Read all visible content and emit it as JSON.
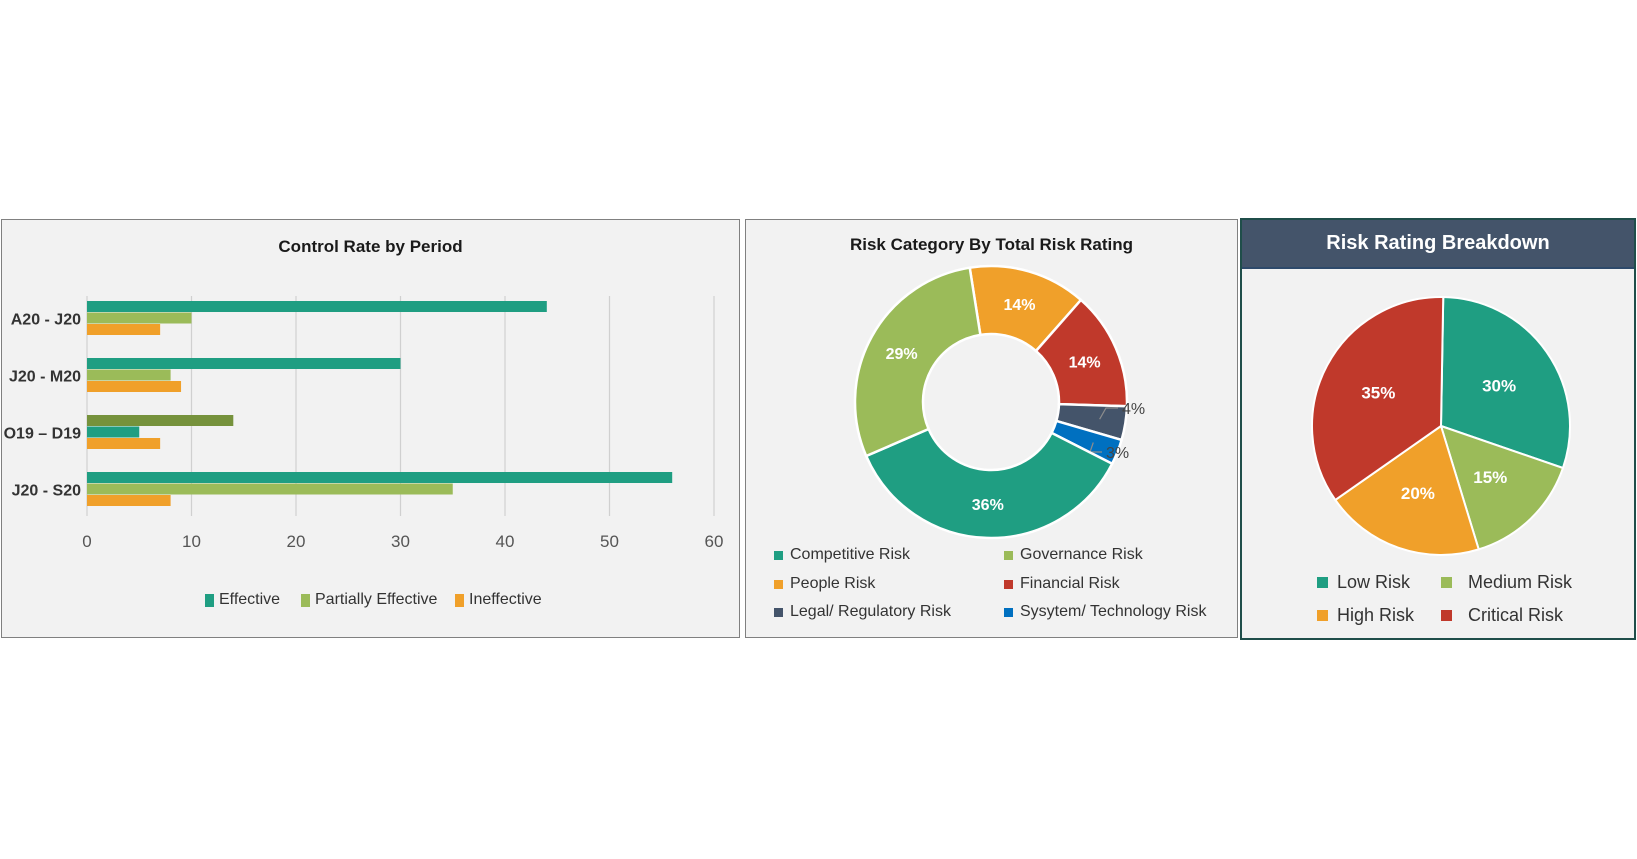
{
  "colors": {
    "effective": "#1f9e82",
    "partially_effective": "#9bbb59",
    "ineffective": "#f0a02a",
    "olive": "#76923c",
    "competitive": "#1f9e82",
    "governance": "#9bbb59",
    "people": "#f0a02a",
    "financial": "#c0392b",
    "legal": "#44546a",
    "system": "#0070c0",
    "low": "#1f9e82",
    "medium": "#9bbb59",
    "high": "#f0a02a",
    "critical": "#c0392b"
  },
  "chart_data": [
    {
      "type": "bar",
      "orientation": "horizontal",
      "title": "Control Rate by Period",
      "categories": [
        "A20 - J20",
        "J20 - M20",
        "O19 – D19",
        "J20 - S20"
      ],
      "series": [
        {
          "name": "Effective",
          "values": [
            44,
            30,
            5,
            56
          ]
        },
        {
          "name": "Partially Effective",
          "values": [
            10,
            8,
            14,
            35
          ]
        },
        {
          "name": "Ineffective",
          "values": [
            7,
            9,
            7,
            8
          ]
        }
      ],
      "note": "O19 – D19 row draws Partially Effective (olive) above Effective",
      "xlabel": "",
      "ylabel": "",
      "xlim": [
        0,
        60
      ],
      "xticks": [
        0,
        10,
        20,
        30,
        40,
        50,
        60
      ],
      "grid": true,
      "legend": "bottom"
    },
    {
      "type": "pie",
      "variant": "donut",
      "title": "Risk Category By Total Risk Rating",
      "slices": [
        {
          "label": "People Risk",
          "value": 14,
          "display": "14%"
        },
        {
          "label": "Financial Risk",
          "value": 14,
          "display": "14%"
        },
        {
          "label": "Legal/ Regulatory Risk",
          "value": 4,
          "display": "4%"
        },
        {
          "label": "Sysytem/ Technology Risk",
          "value": 3,
          "display": "3%"
        },
        {
          "label": "Competitive Risk",
          "value": 36,
          "display": "36%"
        },
        {
          "label": "Governance Risk",
          "value": 29,
          "display": "29%"
        }
      ],
      "legend_order": [
        "Competitive Risk",
        "Governance Risk",
        "People Risk",
        "Financial Risk",
        "Legal/ Regulatory Risk",
        "Sysytem/ Technology Risk"
      ],
      "legend": "bottom"
    },
    {
      "type": "pie",
      "title": "Risk Rating Breakdown",
      "slices": [
        {
          "label": "Low Risk",
          "value": 30,
          "display": "30%"
        },
        {
          "label": "Medium Risk",
          "value": 15,
          "display": "15%"
        },
        {
          "label": "High Risk",
          "value": 20,
          "display": "20%"
        },
        {
          "label": "Critical Risk",
          "value": 35,
          "display": "35%"
        }
      ],
      "legend": "bottom"
    }
  ]
}
